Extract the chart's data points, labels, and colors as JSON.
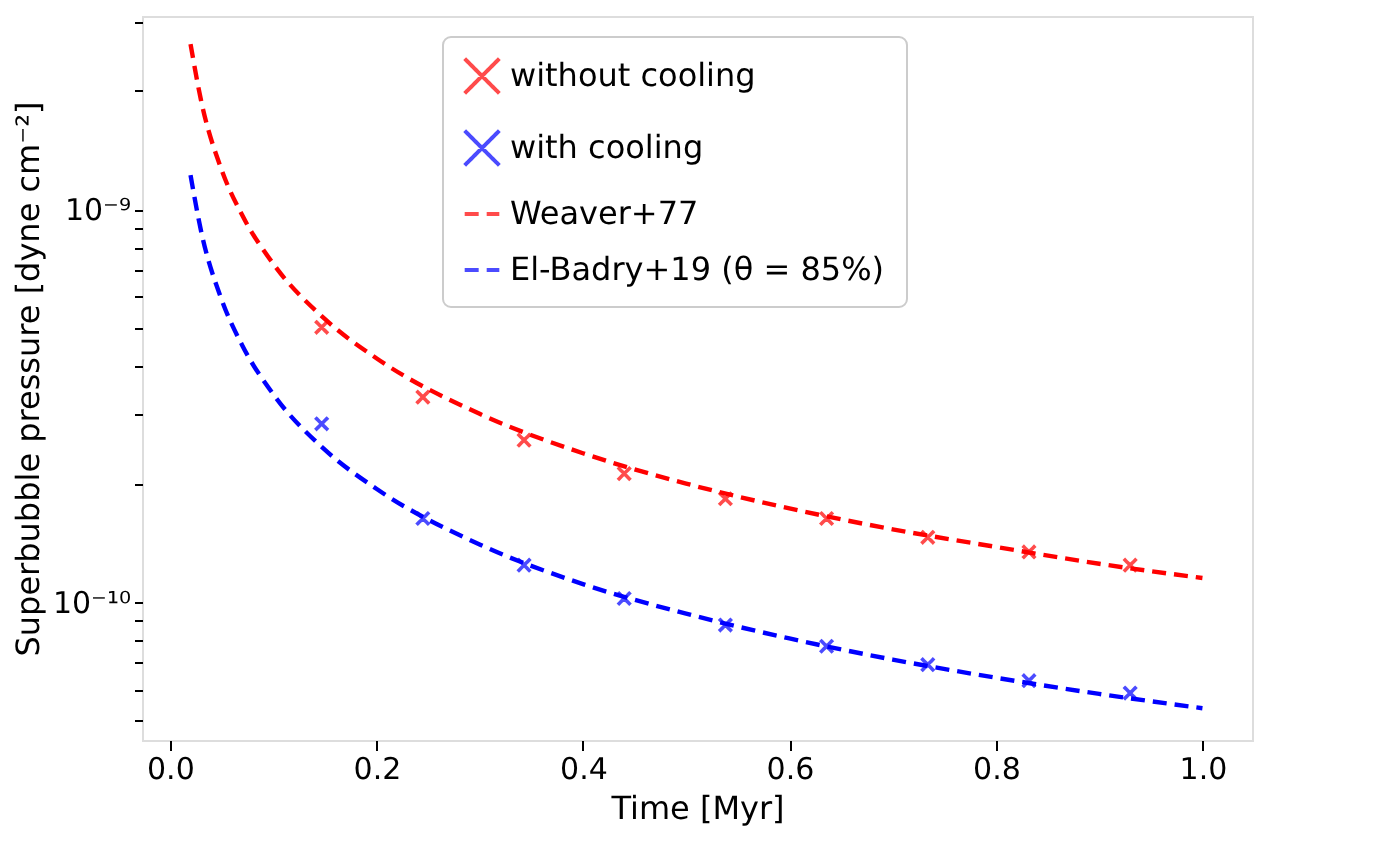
{
  "chart_data": {
    "type": "line",
    "xlabel": "Time [Myr]",
    "ylabel": "Superbubble pressure [dyne cm⁻²]",
    "xlim": [
      -0.027,
      1.048
    ],
    "xticks": [
      {
        "value": 0,
        "label": "0.0"
      },
      0.2,
      0.4,
      0.6,
      0.8,
      {
        "value": 1,
        "label": "1.0"
      }
    ],
    "ylim": [
      4.45e-11,
      3.1e-09
    ],
    "yticks": [
      {
        "value": 5e-11,
        "label": null
      },
      {
        "value": 6e-11,
        "label": null
      },
      {
        "value": 7e-11,
        "label": null
      },
      {
        "value": 8e-11,
        "label": null
      },
      {
        "value": 9e-11,
        "label": null
      },
      {
        "value": 1e-10,
        "label": "10⁻¹⁰"
      },
      {
        "value": 2e-10,
        "label": null
      },
      {
        "value": 3e-10,
        "label": null
      },
      {
        "value": 4e-10,
        "label": null
      },
      {
        "value": 5e-10,
        "label": null
      },
      {
        "value": 6e-10,
        "label": null
      },
      {
        "value": 7e-10,
        "label": null
      },
      {
        "value": 8e-10,
        "label": null
      },
      {
        "value": 9e-10,
        "label": null
      },
      {
        "value": 1e-09,
        "label": "10⁻⁹"
      },
      {
        "value": 2e-09,
        "label": null
      },
      {
        "value": 3e-09,
        "label": null
      }
    ],
    "log": true,
    "grid": false,
    "legend": "top",
    "series": [
      {
        "name": "without cooling",
        "type": "scatter",
        "marker": "cross",
        "color": "#ff0000",
        "x": [
          0.147,
          0.245,
          0.343,
          0.44,
          0.538,
          0.636,
          0.734,
          0.832,
          0.93
        ],
        "values": [
          5e-10,
          3.32e-10,
          2.58e-10,
          2.12e-10,
          1.83e-10,
          1.63e-10,
          1.46e-10,
          1.34e-10,
          1.24e-10
        ]
      },
      {
        "name": "with cooling",
        "type": "scatter",
        "marker": "cross",
        "color": "#0000ff",
        "x": [
          0.147,
          0.245,
          0.343,
          0.44,
          0.538,
          0.636,
          0.734,
          0.832,
          0.93
        ],
        "values": [
          2.84e-10,
          1.63e-10,
          1.24e-10,
          1.02e-10,
          8.73e-11,
          7.71e-11,
          6.92e-11,
          6.3e-11,
          5.86e-11
        ]
      },
      {
        "name": "Weaver+77",
        "line_style": "dashed",
        "color": "#ff0000",
        "x": [
          0.02,
          0.03,
          0.05,
          0.07,
          0.1,
          0.15,
          0.2,
          0.3,
          0.4,
          0.5,
          0.6,
          0.7,
          0.8,
          0.9,
          1.0
        ],
        "values": [
          2.63e-09,
          1.9e-09,
          1.26e-09,
          9.65e-10,
          7.26e-10,
          5.25e-10,
          4.17e-10,
          3.01e-10,
          2.39e-10,
          2e-10,
          1.73e-10,
          1.53e-10,
          1.38e-10,
          1.25e-10,
          1.15e-10
        ]
      },
      {
        "name": "El-Badry+19 (θ = 85%)",
        "line_style": "dashed",
        "color": "#0000ff",
        "x": [
          0.02,
          0.03,
          0.05,
          0.07,
          0.1,
          0.15,
          0.2,
          0.3,
          0.4,
          0.5,
          0.6,
          0.7,
          0.8,
          0.9,
          1.0
        ],
        "values": [
          1.22e-09,
          8.84e-10,
          5.89e-10,
          4.5e-10,
          3.38e-10,
          2.44e-10,
          1.94e-10,
          1.4e-10,
          1.11e-10,
          9.33e-11,
          8.07e-11,
          7.13e-11,
          6.41e-11,
          5.83e-11,
          5.36e-11
        ]
      }
    ]
  }
}
